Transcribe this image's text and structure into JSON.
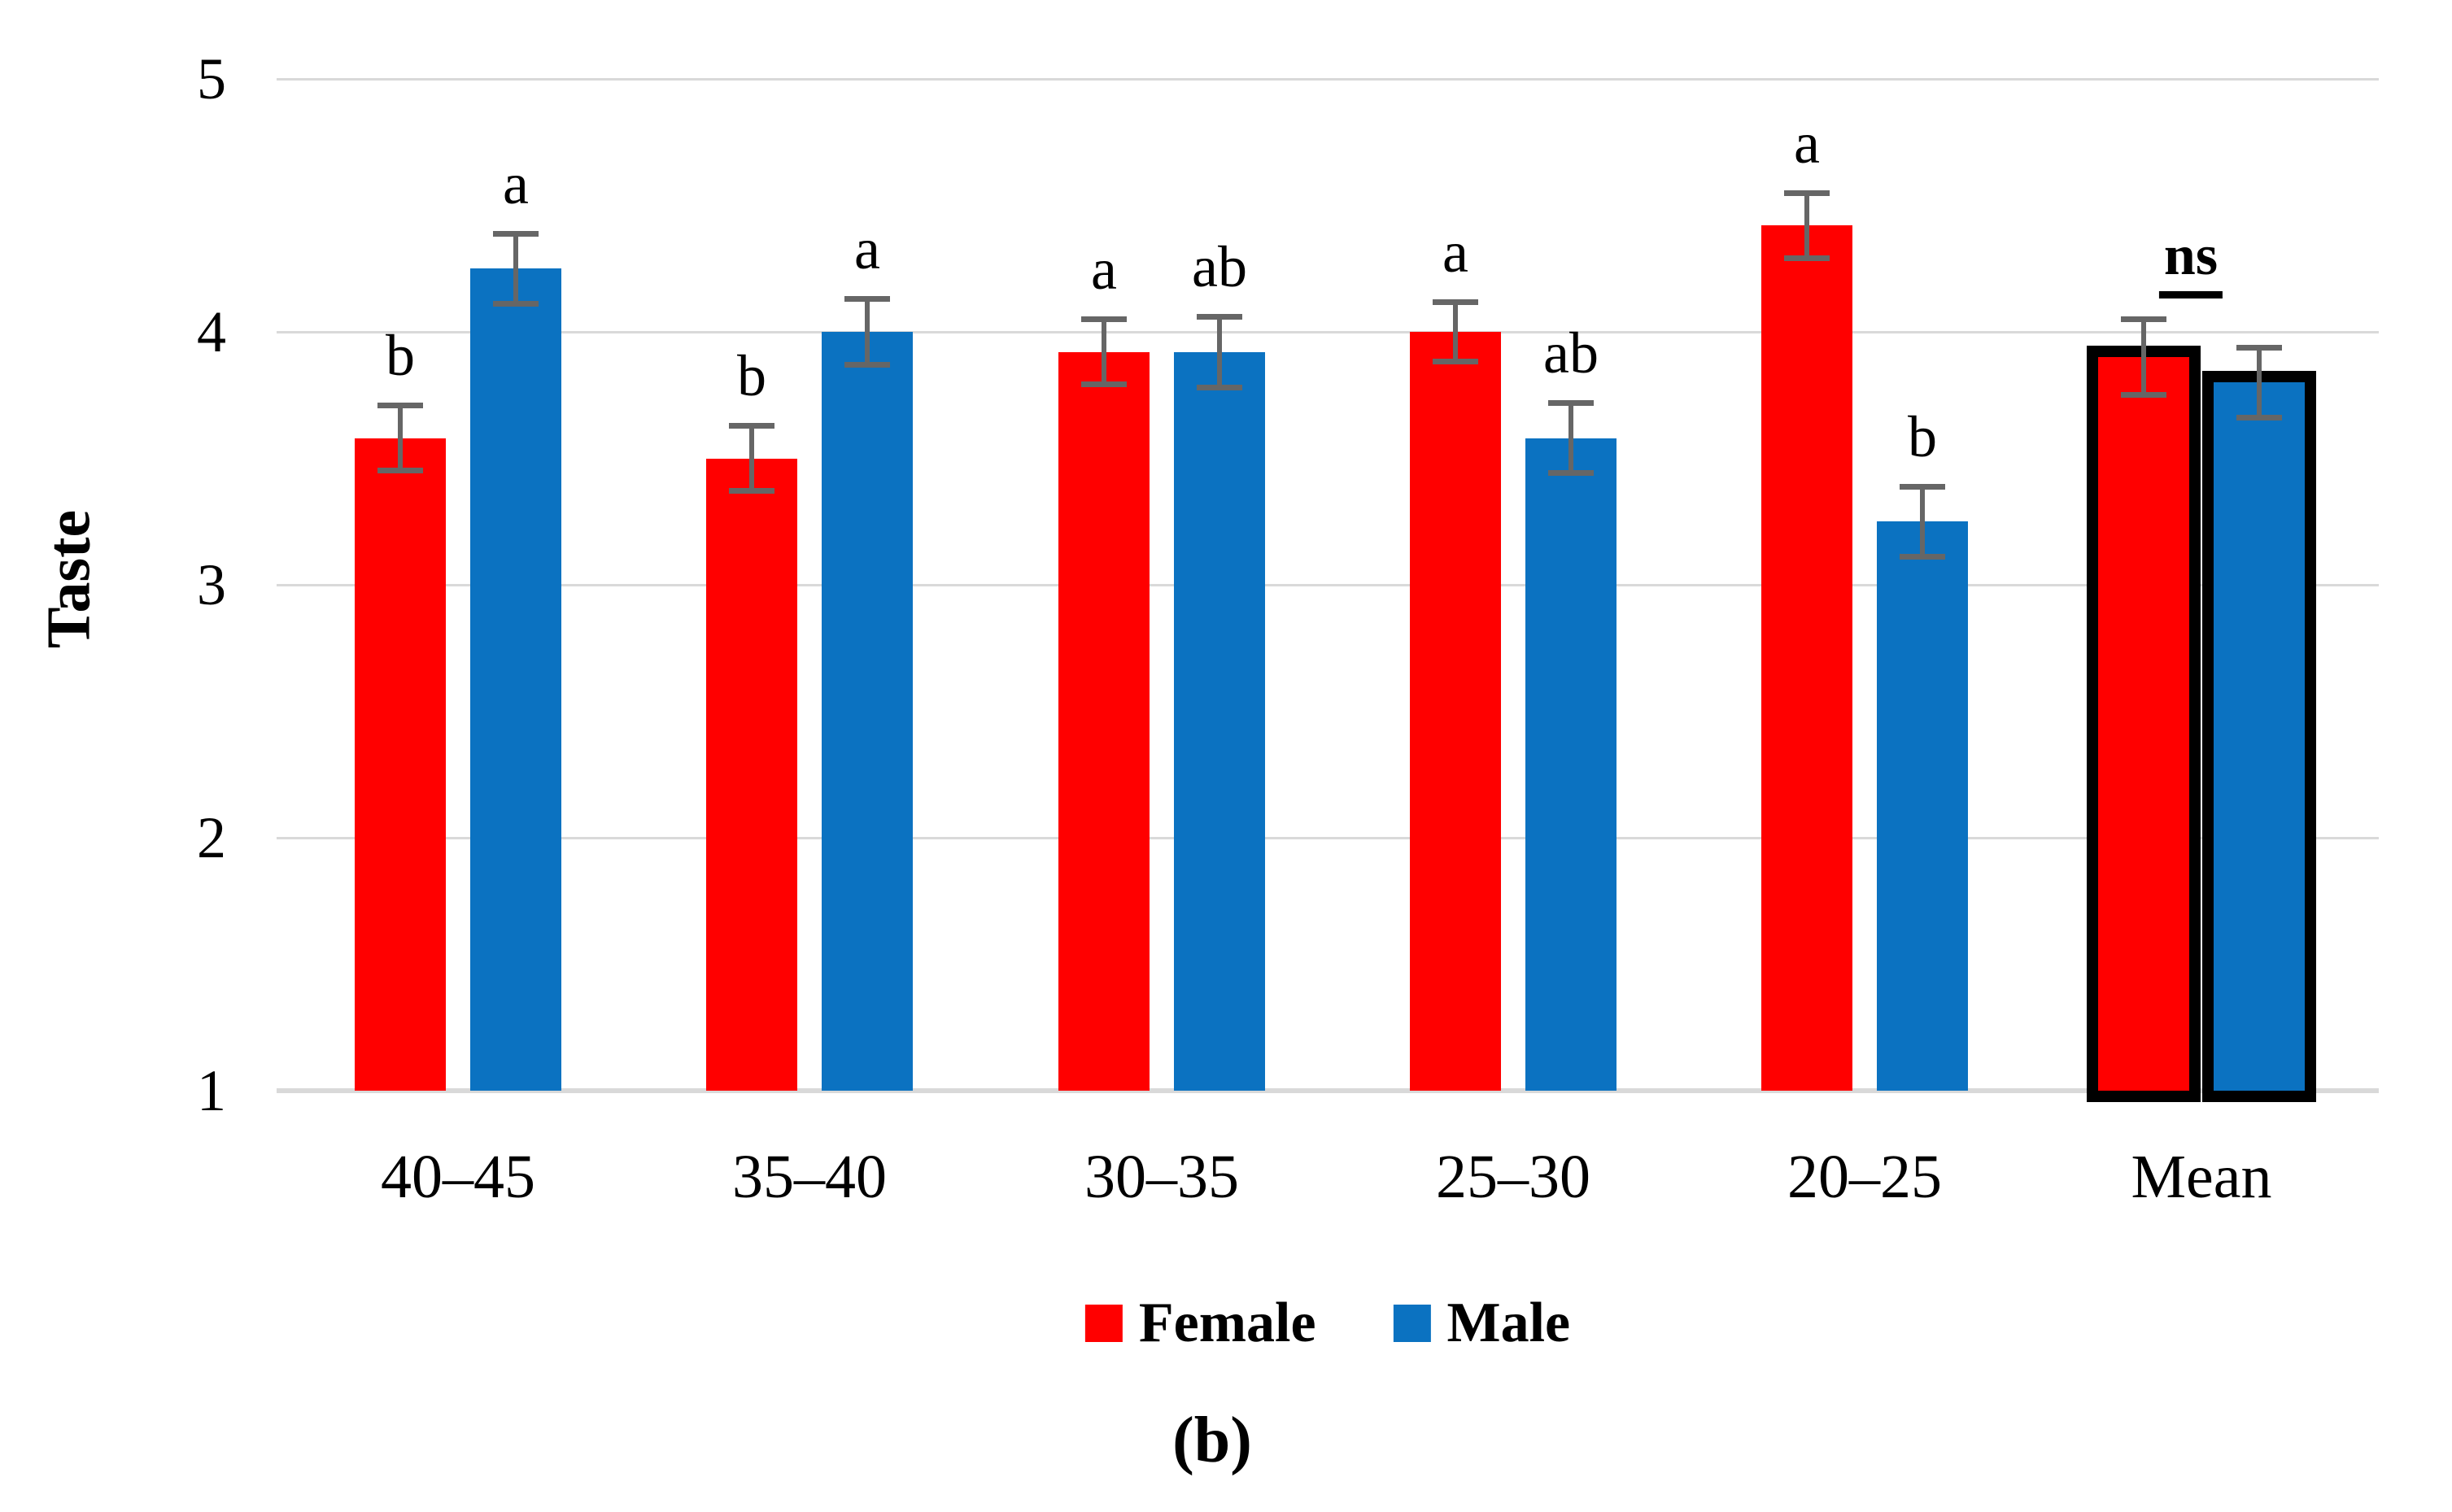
{
  "figure": {
    "caption": "(b)"
  },
  "legend": {
    "items": [
      {
        "label": "Female",
        "color": "#FF0000"
      },
      {
        "label": "Male",
        "color": "#0B72C1"
      }
    ]
  },
  "chart_data": {
    "type": "bar",
    "title": "",
    "xlabel": "",
    "ylabel": "Taste",
    "ylim": [
      1,
      5
    ],
    "yticks": [
      "1",
      "2",
      "3",
      "4",
      "5"
    ],
    "grid": true,
    "legend_position": "bottom-center",
    "categories": [
      "40–45",
      "35–40",
      "30–35",
      "25–30",
      "20–25",
      "Mean"
    ],
    "series": [
      {
        "name": "Female",
        "color": "#FF0000",
        "values": [
          3.58,
          3.5,
          3.92,
          4.0,
          4.42,
          3.9
        ],
        "errors": [
          0.14,
          0.14,
          0.14,
          0.13,
          0.14,
          0.16
        ],
        "letters": [
          "b",
          "b",
          "a",
          "a",
          "a",
          ""
        ]
      },
      {
        "name": "Male",
        "color": "#0B72C1",
        "values": [
          4.25,
          4.0,
          3.92,
          3.58,
          3.25,
          3.8
        ],
        "errors": [
          0.15,
          0.14,
          0.15,
          0.15,
          0.15,
          0.15
        ],
        "letters": [
          "a",
          "a",
          "ab",
          "ab",
          "b",
          ""
        ]
      }
    ],
    "annotations": {
      "ns_label": "ns",
      "ns_meaning": "not significant, Mean group",
      "outlined_category": "Mean"
    },
    "colors": {
      "female": "#FF0000",
      "male": "#0B72C1",
      "error_bar": "#666666",
      "gridline": "#D9D9D9",
      "text": "#000000"
    }
  }
}
